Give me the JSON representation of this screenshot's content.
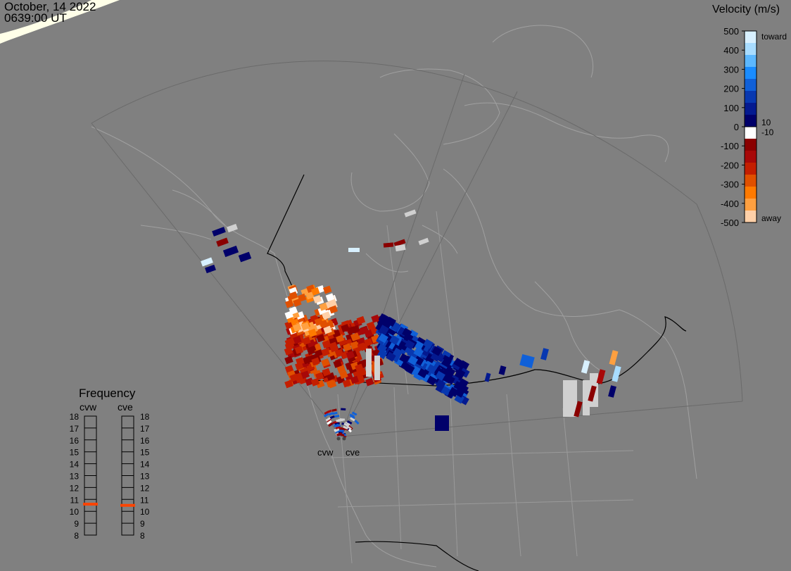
{
  "header": {
    "date": "October, 14 2022",
    "time": "0639:00 UT"
  },
  "colorbar": {
    "title": "Velocity (m/s)",
    "ticks": [
      "500",
      "400",
      "300",
      "200",
      "100",
      "0",
      "-100",
      "-200",
      "-300",
      "-400",
      "-500"
    ],
    "toward_label": "toward",
    "away_label": "away",
    "pos_threshold": "10",
    "neg_threshold": "-10",
    "colors": [
      "#d8f0ff",
      "#a8dcff",
      "#5cb8ff",
      "#1a8cff",
      "#1060d8",
      "#0838b0",
      "#041a90",
      "#00006a",
      "#ffffff",
      "#8a0000",
      "#a80808",
      "#c41e00",
      "#e05000",
      "#ff7a00",
      "#ffa040",
      "#ffd0a8"
    ]
  },
  "frequency": {
    "title": "Frequency",
    "stations": [
      "cvw",
      "cve"
    ],
    "levels": [
      "18",
      "17",
      "16",
      "15",
      "14",
      "13",
      "12",
      "11",
      "10",
      "9",
      "8"
    ],
    "current_mhz": {
      "cvw": 10.6,
      "cve": 10.5
    },
    "marker_color": "#ff4400"
  },
  "radars": {
    "cvw_label": "cvw",
    "cve_label": "cve"
  },
  "map": {
    "background_color": "#808080",
    "coastline_color": "#a0a0a0",
    "border_color": "#000000",
    "scatter_ground_color": "#d0d0d0"
  }
}
